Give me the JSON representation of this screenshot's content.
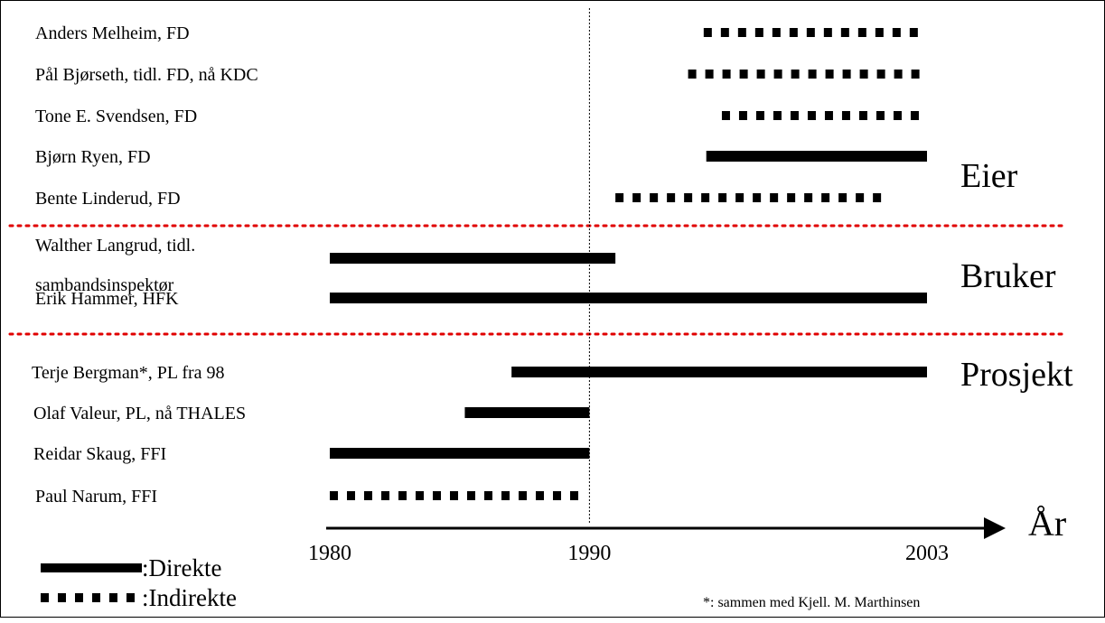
{
  "chart_data": {
    "type": "timeline",
    "axis": {
      "label": "År",
      "ticks": [
        {
          "year": 1980,
          "label": "1980"
        },
        {
          "year": 1990,
          "label": "1990"
        },
        {
          "year": 2003,
          "label": "2003"
        }
      ]
    },
    "reference_line_year": 1990,
    "groups": [
      {
        "label": "Eier",
        "people": [
          {
            "name": "Anders Melheim, FD",
            "start": 1994.4,
            "end": 2003,
            "style": "indirect"
          },
          {
            "name": "Pål Bjørseth, tidl. FD, nå KDC",
            "start": 1993.8,
            "end": 2003,
            "style": "indirect"
          },
          {
            "name": "Tone E. Svendsen, FD",
            "start": 1995.1,
            "end": 2003,
            "style": "indirect"
          },
          {
            "name": "Bjørn Ryen, FD",
            "start": 1994.5,
            "end": 2003,
            "style": "direct"
          },
          {
            "name": "Bente Linderud, FD",
            "start": 1991,
            "end": 2001.5,
            "style": "indirect"
          }
        ]
      },
      {
        "label": "Bruker",
        "people": [
          {
            "name": "Walther Langrud, tidl. sambandsinspektør",
            "start": 1980,
            "end": 1991,
            "style": "direct"
          },
          {
            "name": "Erik Hammer, HFK",
            "start": 1980,
            "end": 2003,
            "style": "direct"
          }
        ]
      },
      {
        "label": "Prosjekt",
        "people": [
          {
            "name": "Terje Bergman*, PL fra 98",
            "start": 1987,
            "end": 2003,
            "style": "direct"
          },
          {
            "name": "Olaf Valeur, PL, nå THALES",
            "start": 1985.2,
            "end": 1990,
            "style": "direct"
          },
          {
            "name": "Reidar Skaug, FFI",
            "start": 1980,
            "end": 1990,
            "style": "direct"
          },
          {
            "name": "Paul Narum, FFI",
            "start": 1980,
            "end": 1990,
            "style": "indirect"
          }
        ]
      }
    ],
    "legend": [
      {
        "style": "direct",
        "label": ":Direkte"
      },
      {
        "style": "indirect",
        "label": ":Indirekte"
      }
    ],
    "footnote": "*: sammen med Kjell. M. Marthinsen",
    "colors": {
      "line": "#000000",
      "separator": "#e00000"
    }
  }
}
